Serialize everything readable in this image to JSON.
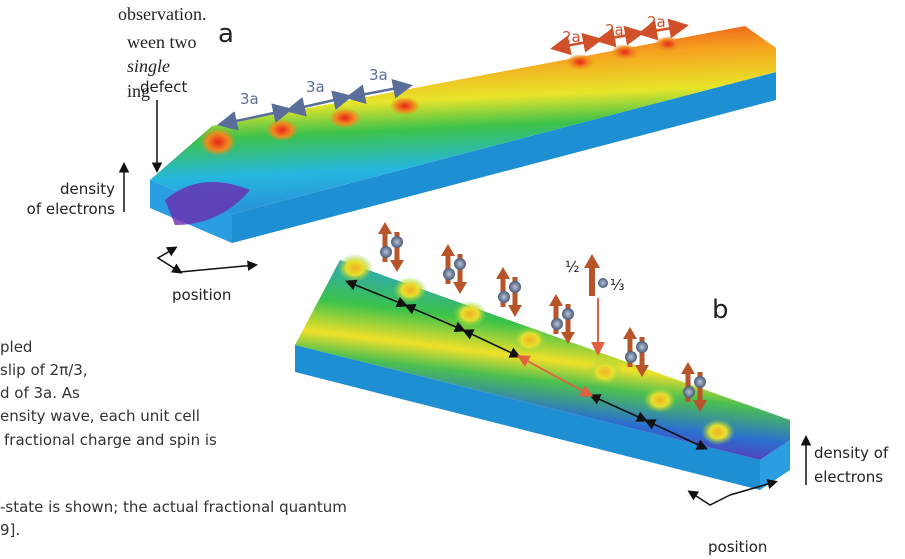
{
  "caption_top": [
    "observation.",
    "ween two",
    "single",
    "ing"
  ],
  "caption_bottom": [
    "pled",
    "slip of 2π/3,",
    "d of 3a. As",
    "ensity wave, each unit cell",
    "fractional charge and spin is",
    "-state is shown; the actual fractional quantum",
    "9]."
  ],
  "panel_a": {
    "label": "a",
    "defect": "defect",
    "spacing_3a": [
      "3a",
      "3a",
      "3a"
    ],
    "spacing_2a": [
      "2a",
      "2a",
      "2a"
    ],
    "density": [
      "density",
      "of electrons"
    ],
    "position": "position"
  },
  "panel_b": {
    "label": "b",
    "half": "½",
    "third": "⅓",
    "density": [
      "density of",
      "electrons"
    ],
    "position": "position"
  }
}
